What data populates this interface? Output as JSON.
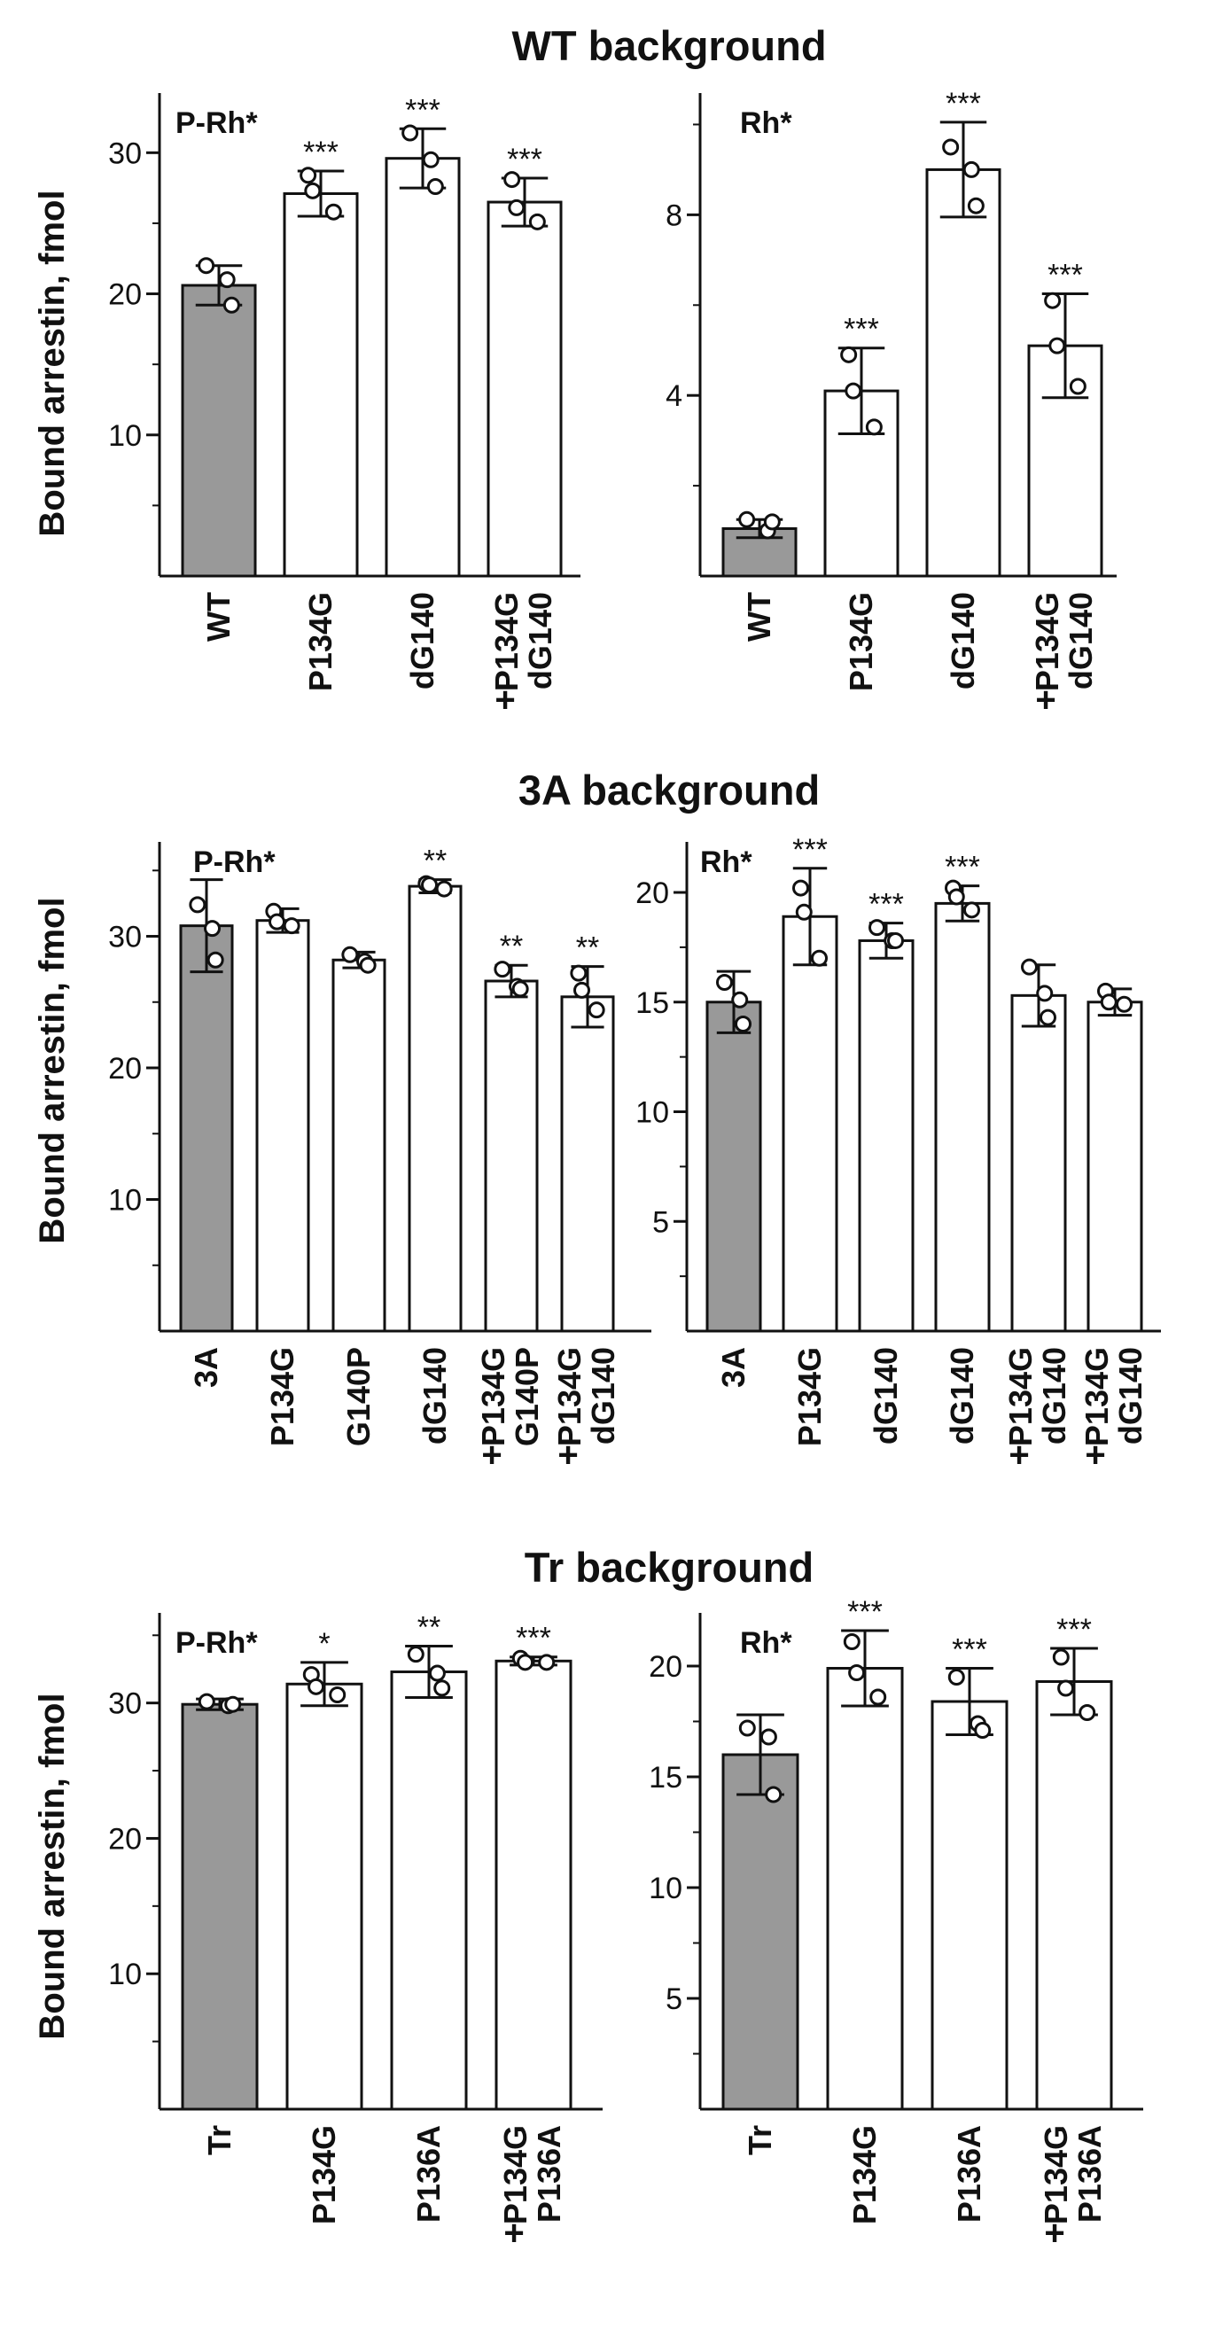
{
  "sections": [
    {
      "title": "WT background",
      "ylabel": "Bound arrestin, fmol"
    },
    {
      "title": "3A background",
      "ylabel": "Bound arrestin, fmol"
    },
    {
      "title": "Tr background",
      "ylabel": "Bound arrestin, fmol"
    }
  ],
  "colors": {
    "control_bar": "#999999",
    "mutant_bar": "#ffffff",
    "stroke": "#111111"
  },
  "chart_data": [
    {
      "type": "bar",
      "section": "WT background",
      "panel_label": "P-Rh*",
      "ylabel": "Bound arrestin, fmol",
      "ylim": [
        0,
        33.6
      ],
      "yticks": [
        10,
        20,
        30
      ],
      "categories": [
        {
          "lines": [
            "WT"
          ],
          "plus": false
        },
        {
          "lines": [
            "P134G"
          ],
          "plus": false
        },
        {
          "lines": [
            "dG140"
          ],
          "plus": false
        },
        {
          "lines": [
            "P134G",
            "dG140"
          ],
          "plus": true
        }
      ],
      "values": [
        20.6,
        27.1,
        29.6,
        26.5
      ],
      "errors": [
        1.4,
        1.6,
        2.1,
        1.7
      ],
      "points": [
        [
          22.0,
          21.0,
          19.2
        ],
        [
          28.4,
          27.3,
          25.8
        ],
        [
          31.4,
          29.5,
          27.6
        ],
        [
          28.1,
          26.1,
          25.1
        ]
      ],
      "significance": [
        "",
        "***",
        "***",
        "***"
      ]
    },
    {
      "type": "bar",
      "section": "WT background",
      "panel_label": "Rh*",
      "ylabel": "",
      "ylim": [
        0,
        10.5
      ],
      "yticks": [
        4,
        8
      ],
      "categories": [
        {
          "lines": [
            "WT"
          ],
          "plus": false
        },
        {
          "lines": [
            "P134G"
          ],
          "plus": false
        },
        {
          "lines": [
            "dG140"
          ],
          "plus": false
        },
        {
          "lines": [
            "P134G",
            "dG140"
          ],
          "plus": true
        }
      ],
      "values": [
        1.05,
        4.1,
        9.0,
        5.1
      ],
      "errors": [
        0.2,
        0.95,
        1.05,
        1.15
      ],
      "points": [
        [
          1.25,
          1.0,
          1.2
        ],
        [
          4.9,
          4.1,
          3.3
        ],
        [
          9.5,
          9.0,
          8.2
        ],
        [
          6.1,
          5.1,
          4.2
        ]
      ],
      "significance": [
        "",
        "***",
        "***",
        "***"
      ]
    },
    {
      "type": "bar",
      "section": "3A background",
      "panel_label": "P-Rh*",
      "ylabel": "Bound arrestin, fmol",
      "ylim": [
        0,
        36.5
      ],
      "yticks": [
        10,
        20,
        30
      ],
      "categories": [
        {
          "lines": [
            "3A"
          ],
          "plus": false
        },
        {
          "lines": [
            "P134G"
          ],
          "plus": false
        },
        {
          "lines": [
            "G140P"
          ],
          "plus": false
        },
        {
          "lines": [
            "dG140"
          ],
          "plus": false
        },
        {
          "lines": [
            "P134G",
            "G140P"
          ],
          "plus": true
        },
        {
          "lines": [
            "P134G",
            "dG140"
          ],
          "plus": true
        }
      ],
      "values": [
        30.8,
        31.2,
        28.2,
        33.8,
        26.6,
        25.4
      ],
      "errors": [
        3.5,
        0.9,
        0.6,
        0.5,
        1.2,
        2.3
      ],
      "points": [
        [
          32.4,
          30.6,
          28.2
        ],
        [
          31.9,
          31.1,
          30.8
        ],
        [
          28.6,
          28.1,
          27.8
        ],
        [
          34.0,
          33.9,
          33.6
        ],
        [
          27.5,
          26.2,
          26.0
        ],
        [
          27.2,
          25.9,
          24.4
        ]
      ],
      "significance": [
        "",
        "",
        "",
        "**",
        "**",
        "**"
      ]
    },
    {
      "type": "bar",
      "section": "3A background",
      "panel_label": "Rh*",
      "ylabel": "",
      "ylim": [
        0,
        21.9
      ],
      "yticks": [
        5,
        10,
        15,
        20
      ],
      "categories": [
        {
          "lines": [
            "3A"
          ],
          "plus": false
        },
        {
          "lines": [
            "P134G"
          ],
          "plus": false
        },
        {
          "lines": [
            "dG140"
          ],
          "plus": false
        },
        {
          "lines": [
            "dG140"
          ],
          "plus": false
        },
        {
          "lines": [
            "P134G",
            "dG140"
          ],
          "plus": true
        },
        {
          "lines": [
            "P134G",
            "dG140"
          ],
          "plus": true
        }
      ],
      "values": [
        15.0,
        18.9,
        17.8,
        19.5,
        15.3,
        15.0
      ],
      "errors": [
        1.4,
        2.2,
        0.8,
        0.8,
        1.4,
        0.6
      ],
      "points": [
        [
          15.9,
          15.1,
          14.0
        ],
        [
          20.2,
          19.1,
          17.0
        ],
        [
          18.4,
          17.8,
          17.8
        ],
        [
          20.2,
          19.8,
          19.2
        ],
        [
          16.6,
          15.4,
          14.3
        ],
        [
          15.5,
          15.0,
          14.9
        ]
      ],
      "significance": [
        "",
        "***",
        "***",
        "***",
        "",
        ""
      ]
    },
    {
      "type": "bar",
      "section": "Tr background",
      "panel_label": "P-Rh*",
      "ylabel": "Bound arrestin, fmol",
      "ylim": [
        0,
        36.0
      ],
      "yticks": [
        10,
        20,
        30
      ],
      "categories": [
        {
          "lines": [
            "Tr"
          ],
          "plus": false
        },
        {
          "lines": [
            "P134G"
          ],
          "plus": false
        },
        {
          "lines": [
            "P136A"
          ],
          "plus": false
        },
        {
          "lines": [
            "P134G",
            "P136A"
          ],
          "plus": true
        }
      ],
      "values": [
        29.9,
        31.4,
        32.3,
        33.1
      ],
      "errors": [
        0.4,
        1.6,
        1.9,
        0.3
      ],
      "points": [
        [
          30.1,
          29.8,
          29.9
        ],
        [
          32.1,
          31.2,
          30.6
        ],
        [
          33.6,
          32.2,
          31.1
        ],
        [
          33.3,
          33.0,
          33.0
        ]
      ],
      "significance": [
        "",
        "*",
        "**",
        "***"
      ]
    },
    {
      "type": "bar",
      "section": "Tr background",
      "panel_label": "Rh*",
      "ylabel": "",
      "ylim": [
        0,
        22.0
      ],
      "yticks": [
        5,
        10,
        15,
        20
      ],
      "categories": [
        {
          "lines": [
            "Tr"
          ],
          "plus": false
        },
        {
          "lines": [
            "P134G"
          ],
          "plus": false
        },
        {
          "lines": [
            "P136A"
          ],
          "plus": false
        },
        {
          "lines": [
            "P134G",
            "P136A"
          ],
          "plus": true
        }
      ],
      "values": [
        16.0,
        19.9,
        18.4,
        19.3
      ],
      "errors": [
        1.8,
        1.7,
        1.5,
        1.5
      ],
      "points": [
        [
          17.2,
          16.8,
          14.2
        ],
        [
          21.1,
          19.7,
          18.6
        ],
        [
          19.5,
          17.4,
          17.1
        ],
        [
          20.4,
          19.0,
          17.9
        ]
      ],
      "significance": [
        "",
        "***",
        "***",
        "***"
      ]
    }
  ]
}
